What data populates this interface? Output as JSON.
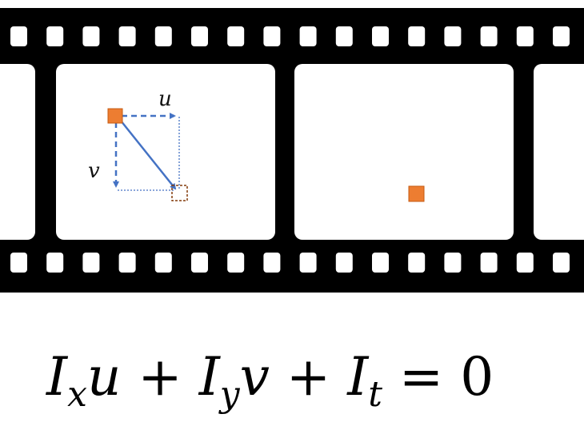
{
  "figure": {
    "labels": {
      "u": "u",
      "v": "v"
    },
    "equation": {
      "parts": [
        {
          "base": "I",
          "sub": "x"
        },
        {
          "text": "u"
        },
        {
          "op": " + "
        },
        {
          "base": "I",
          "sub": "y"
        },
        {
          "text": "v"
        },
        {
          "op": " + "
        },
        {
          "base": "I",
          "sub": "t"
        },
        {
          "op": " = "
        },
        {
          "num": "0"
        }
      ]
    },
    "colors": {
      "film": "#000000",
      "frame": "#ffffff",
      "pixel": "#ed7d31",
      "pixel_outline": "#c55a11",
      "displacement_arrow": "#4472c4",
      "moved_pixel_outline": "#843c0c"
    },
    "icons": [
      "film-strip",
      "pixel-square",
      "displacement-arrow"
    ]
  }
}
